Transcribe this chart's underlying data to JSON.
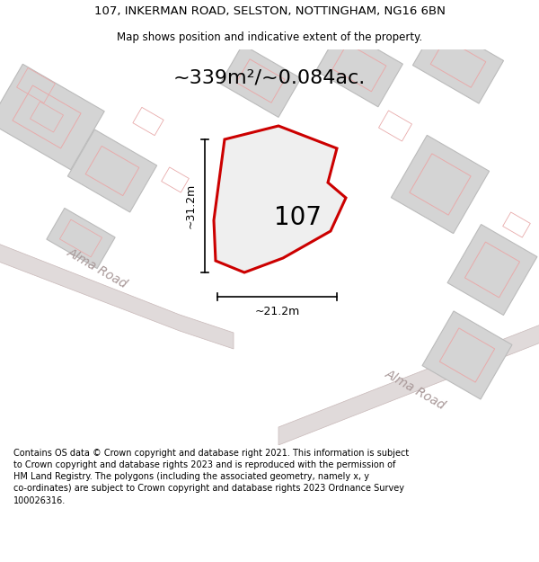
{
  "title_line1": "107, INKERMAN ROAD, SELSTON, NOTTINGHAM, NG16 6BN",
  "title_line2": "Map shows position and indicative extent of the property.",
  "area_label": "~339m²/~0.084ac.",
  "property_number": "107",
  "dim_vertical": "~31.2m",
  "dim_horizontal": "~21.2m",
  "road_label1": "Alma Road",
  "road_label2": "Alma Road",
  "footer_text1": "Contains OS data © Crown copyright and database right 2021. This information is subject",
  "footer_text2": "to Crown copyright and database rights 2023 and is reproduced with the permission of",
  "footer_text3": "HM Land Registry. The polygons (including the associated geometry, namely x, y",
  "footer_text4": "co-ordinates) are subject to Crown copyright and database rights 2023 Ordnance Survey",
  "footer_text5": "100026316.",
  "bg_color": "#f7f2f2",
  "building_gray_fc": "#d4d4d4",
  "building_gray_ec": "#bbbbbb",
  "road_fc": "#e0dada",
  "road_ec": "#c8b8b8",
  "pink_ec": "#e8aaaa",
  "property_outline_color": "#cc0000",
  "property_fill": "#efefef",
  "figure_width": 6.0,
  "figure_height": 6.25,
  "dpi": 100,
  "title_fontsize": 9.5,
  "subtitle_fontsize": 8.5,
  "area_fontsize": 16,
  "num_fontsize": 20,
  "dim_fontsize": 9,
  "road_fontsize": 10,
  "footer_fontsize": 7.0
}
